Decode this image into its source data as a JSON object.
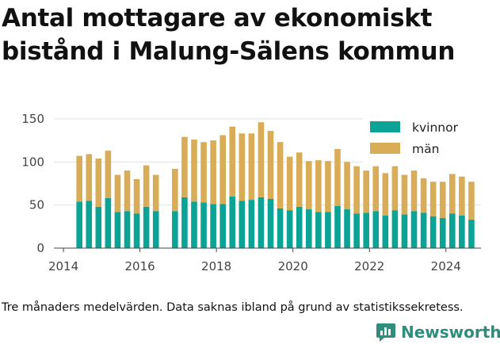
{
  "title": "Antal mottagare av ekonomiskt bistånd i Malung-Sälens kommun",
  "footnote": "Tre månaders medelvärden. Data saknas ibland på grund av statistikssekretess.",
  "brand": {
    "name": "Newsworthy",
    "icon": "newsworthy-logo-icon"
  },
  "colors": {
    "kvinnor": "#0aa396",
    "man": "#d9ac58",
    "grid": "#e2e2e2",
    "axis": "#444444"
  },
  "chart_data": {
    "type": "bar",
    "stacked": true,
    "title": "Antal mottagare av ekonomiskt bistånd i Malung-Sälens kommun",
    "xlabel": "",
    "ylabel": "",
    "ylim": [
      0,
      160
    ],
    "yticks": [
      0,
      50,
      100,
      150
    ],
    "xticks": [
      "2014",
      "2016",
      "2018",
      "2020",
      "2022",
      "2024"
    ],
    "xlim": [
      "2013-10",
      "2024-12"
    ],
    "grid": true,
    "legend_position": "top-right",
    "x": [
      "2014-06",
      "2014-09",
      "2014-12",
      "2015-03",
      "2015-06",
      "2015-09",
      "2015-12",
      "2016-03",
      "2016-06",
      "2016-12",
      "2017-03",
      "2017-06",
      "2017-09",
      "2017-12",
      "2018-03",
      "2018-06",
      "2018-09",
      "2018-12",
      "2019-03",
      "2019-06",
      "2019-09",
      "2019-12",
      "2020-03",
      "2020-06",
      "2020-09",
      "2020-12",
      "2021-03",
      "2021-06",
      "2021-09",
      "2021-12",
      "2022-03",
      "2022-06",
      "2022-09",
      "2022-12",
      "2023-03",
      "2023-06",
      "2023-09",
      "2023-12",
      "2024-03",
      "2024-06",
      "2024-09"
    ],
    "series": [
      {
        "name": "kvinnor",
        "values": [
          54,
          55,
          48,
          58,
          42,
          43,
          40,
          48,
          43,
          43,
          59,
          54,
          53,
          51,
          51,
          60,
          55,
          56,
          59,
          57,
          46,
          44,
          48,
          45,
          42,
          42,
          49,
          45,
          40,
          41,
          43,
          38,
          44,
          39,
          43,
          41,
          37,
          35,
          40,
          38,
          33
        ]
      },
      {
        "name": "män",
        "values": [
          53,
          54,
          56,
          55,
          43,
          47,
          40,
          48,
          42,
          49,
          70,
          72,
          70,
          74,
          80,
          81,
          78,
          77,
          87,
          79,
          77,
          62,
          63,
          56,
          60,
          59,
          66,
          55,
          55,
          49,
          52,
          49,
          51,
          46,
          47,
          40,
          40,
          42,
          46,
          45,
          44
        ]
      }
    ]
  }
}
